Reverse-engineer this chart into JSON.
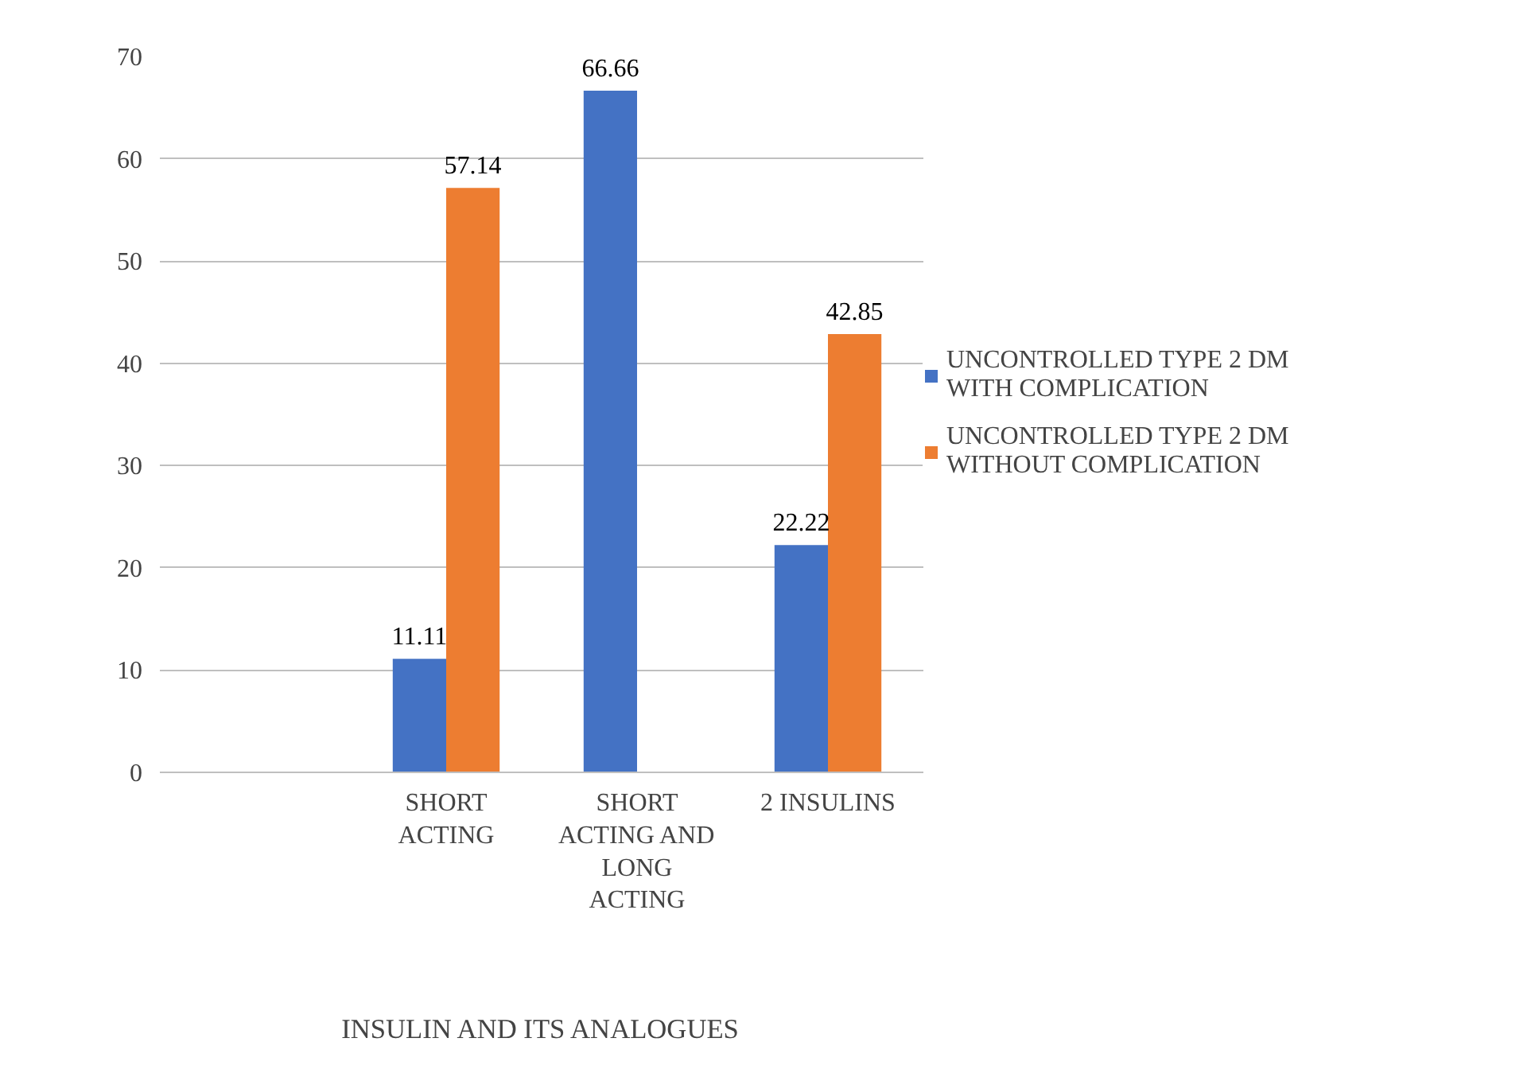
{
  "chart_data": {
    "type": "bar",
    "xlabel": "INSULIN AND ITS ANALOGUES",
    "categories": [
      null,
      "SHORT ACTING",
      "SHORT ACTING AND LONG ACTING",
      "2 INSULINS"
    ],
    "series": [
      {
        "name": "UNCONTROLLED TYPE 2 DM WITH COMPLICATION",
        "color": "#4472c4",
        "values": [
          null,
          11.11,
          66.66,
          22.22
        ]
      },
      {
        "name": "UNCONTROLLED TYPE 2 DM WITHOUT COMPLICATION",
        "color": "#ed7d31",
        "values": [
          null,
          57.14,
          null,
          42.85
        ]
      }
    ],
    "ylim": [
      0,
      70
    ],
    "yticks": [
      0,
      10,
      20,
      30,
      40,
      50,
      60,
      70
    ],
    "grid": "y",
    "legend": "right",
    "data_labels": true
  }
}
